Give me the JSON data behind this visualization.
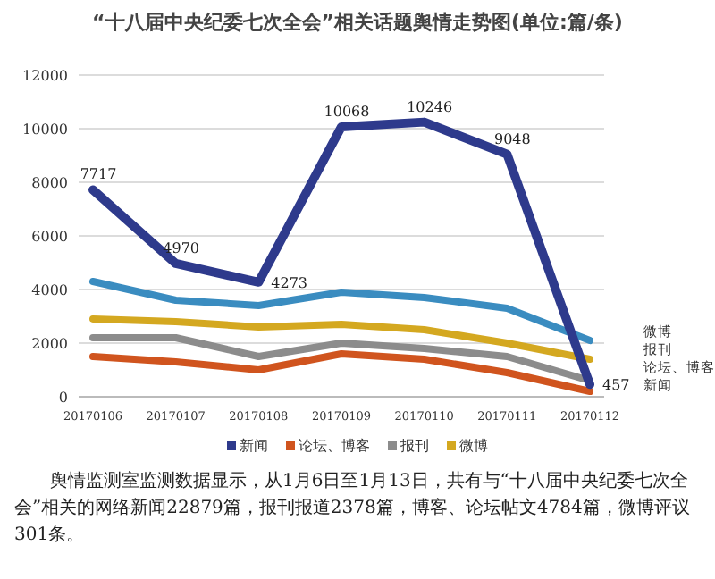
{
  "chart_data": {
    "type": "line",
    "title": "“十八届中央纪委七次全会”相关话题舆情走势图(单位:篇/条)",
    "categories": [
      "20170106",
      "20170107",
      "20170108",
      "20170109",
      "20170110",
      "20170111",
      "20170112"
    ],
    "series": [
      {
        "name": "新闻",
        "color": "#2e3a8c",
        "values": [
          7717,
          4970,
          4273,
          10068,
          10246,
          9048,
          457
        ],
        "value_labels": [
          "7717",
          "4970",
          "4273",
          "10068",
          "10246",
          "9048",
          "457"
        ]
      },
      {
        "name": "论坛、博客",
        "color": "#d0541e",
        "values": [
          1500,
          1300,
          1000,
          1600,
          1400,
          900,
          200
        ]
      },
      {
        "name": "报刊",
        "color": "#8c8c8c",
        "values": [
          2200,
          2200,
          1500,
          2000,
          1800,
          1500,
          600
        ]
      },
      {
        "name": "微博",
        "color": "#d4a820",
        "values": [
          2900,
          2800,
          2600,
          2700,
          2500,
          2000,
          1400
        ]
      },
      {
        "color": "#3a8cc0",
        "values": [
          4300,
          3600,
          3400,
          3900,
          3700,
          3300,
          2100
        ]
      }
    ],
    "ylim": [
      0,
      12000
    ],
    "yticks": [
      0,
      2000,
      4000,
      6000,
      8000,
      10000,
      12000
    ],
    "grid": "y",
    "legend": "bottom",
    "annotations": [
      "舆情监测室监测数据显示，从1月6日至1月13日，共有与“十八届中央纪委七次全会”相关的网络新闻22879篇，报刊报道2378篇，博客、论坛帖文4784篇，微博评议301条。"
    ]
  }
}
